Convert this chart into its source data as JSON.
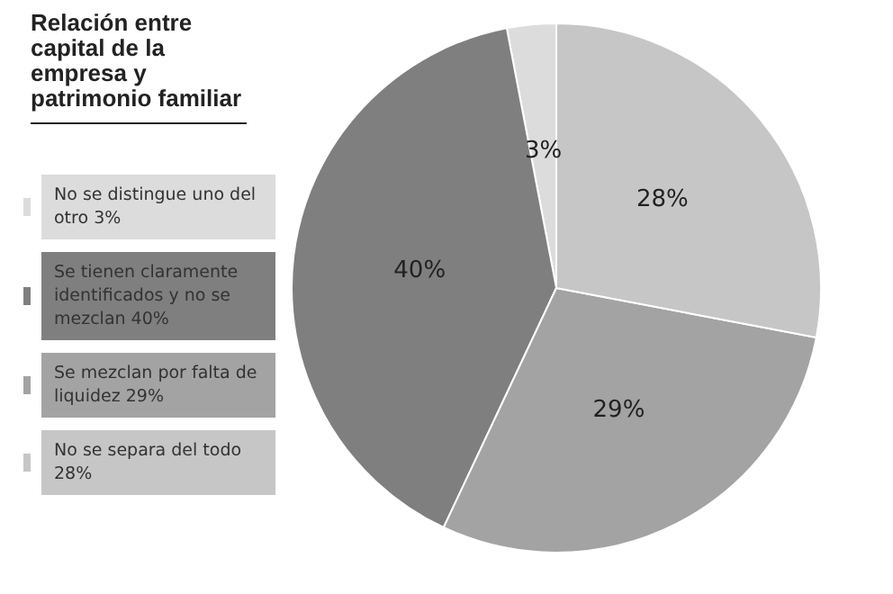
{
  "chart_data": {
    "type": "pie",
    "title": "Relación entre capital de la empresa y patrimonio familiar",
    "categories": [
      "No se distingue uno del otro 3%",
      "Se tienen claramente identificados y no se mezclan 40%",
      "Se mezclan por falta de liquidez 29%",
      "No se separa del todo 28%"
    ],
    "values": [
      3,
      40,
      29,
      28
    ],
    "colors": [
      "#dcdcdc",
      "#7f7f7f",
      "#a3a3a3",
      "#c6c6c6"
    ],
    "value_labels": [
      "3%",
      "40%",
      "29%",
      "28%"
    ],
    "legend": "left"
  }
}
